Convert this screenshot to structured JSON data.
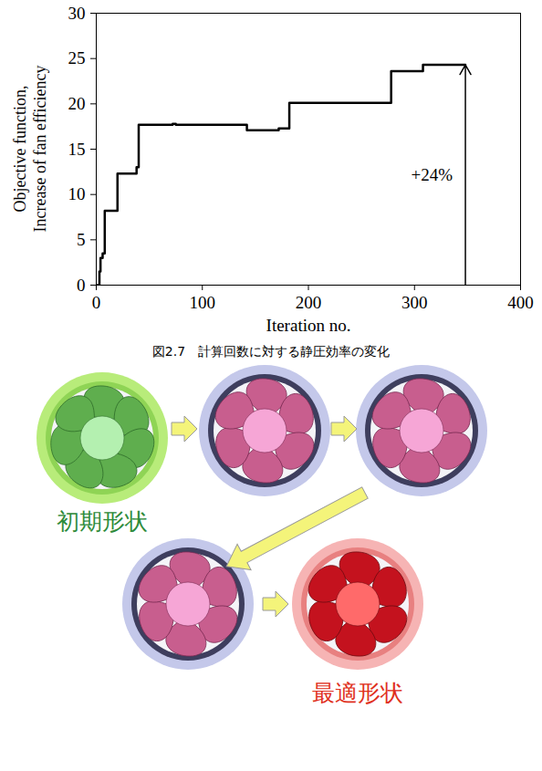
{
  "chart_data": {
    "type": "line",
    "line_style": "step",
    "color": "#000000",
    "x_label": "Iteration no.",
    "y_label": "Objective function, Increase of fan efficiency",
    "x": [
      0,
      2,
      3,
      4,
      6,
      7,
      8,
      18,
      20,
      35,
      38,
      40,
      70,
      72,
      75,
      140,
      142,
      170,
      172,
      180,
      182,
      276,
      278,
      305,
      308,
      348
    ],
    "values": [
      0,
      0,
      1.5,
      3,
      3.5,
      3.5,
      8.2,
      8.2,
      12.3,
      12.3,
      13,
      17.7,
      17.7,
      17.8,
      17.7,
      17.7,
      17.1,
      17.1,
      17.3,
      17.3,
      20.1,
      20.1,
      23.6,
      23.6,
      24.3,
      24.3
    ],
    "xlim": [
      0,
      400
    ],
    "xticks": [
      0,
      100,
      200,
      300,
      400
    ],
    "ylim": [
      0,
      30
    ],
    "yticks": [
      0,
      5,
      10,
      15,
      20,
      25,
      30
    ],
    "grid": false,
    "annotations": [
      {
        "text": "+24%",
        "x": 348,
        "y": 24.3
      }
    ]
  },
  "figure": {
    "caption": "図2.7　計算回数に対する静圧効率の変化",
    "diagram": {
      "initial_label": "初期形状",
      "optimal_label": "最適形状"
    }
  }
}
